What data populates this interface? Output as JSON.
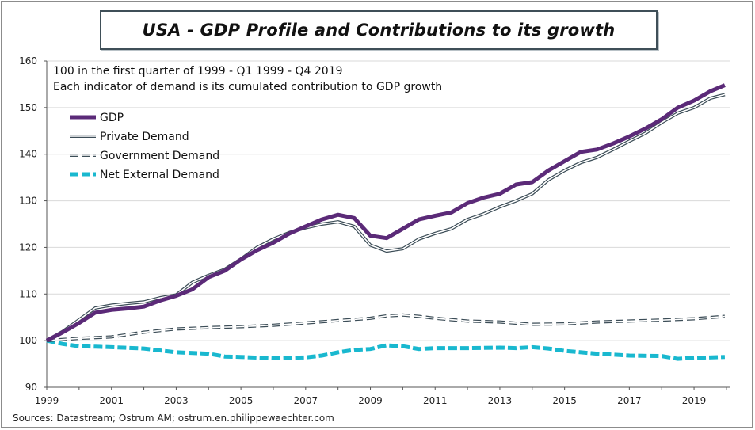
{
  "title": "USA - GDP Profile and Contributions to its growth",
  "source": "Sources: Datastream; Ostrum AM;  ostrum.en.philippewaechter.com",
  "colors": {
    "gdp": "#5b2a78",
    "private": "#3c4d57",
    "government": "#3c4d57",
    "external": "#19b8cf"
  },
  "chart_data": {
    "type": "line",
    "notes": [
      "100 in  the first quarter of 1999 - Q1 1999 - Q4 2019",
      "Each indicator of demand is its cumulated contribution  to GDP growth"
    ],
    "xlim": [
      1999,
      2020.1
    ],
    "ylim": [
      90,
      160
    ],
    "x_ticks": [
      1999,
      2001,
      2003,
      2005,
      2007,
      2009,
      2011,
      2013,
      2015,
      2017,
      2019
    ],
    "y_ticks": [
      90,
      100,
      110,
      120,
      130,
      140,
      150,
      160
    ],
    "legend_position": "top-left",
    "series": [
      {
        "name": "GDP",
        "style": "thick-solid",
        "points": [
          [
            1999,
            100
          ],
          [
            1999.5,
            101.8
          ],
          [
            2000,
            103.8
          ],
          [
            2000.5,
            106
          ],
          [
            2001,
            106.6
          ],
          [
            2001.5,
            106.9
          ],
          [
            2002,
            107.3
          ],
          [
            2002.5,
            108.6
          ],
          [
            2003,
            109.6
          ],
          [
            2003.5,
            111
          ],
          [
            2004,
            113.6
          ],
          [
            2004.5,
            115
          ],
          [
            2005,
            117.4
          ],
          [
            2005.5,
            119.4
          ],
          [
            2006,
            121
          ],
          [
            2006.5,
            123
          ],
          [
            2007,
            124.5
          ],
          [
            2007.5,
            126
          ],
          [
            2008,
            127
          ],
          [
            2008.5,
            126.3
          ],
          [
            2009,
            122.5
          ],
          [
            2009.5,
            122
          ],
          [
            2010,
            124
          ],
          [
            2010.5,
            126
          ],
          [
            2011,
            126.8
          ],
          [
            2011.5,
            127.5
          ],
          [
            2012,
            129.5
          ],
          [
            2012.5,
            130.7
          ],
          [
            2013,
            131.5
          ],
          [
            2013.5,
            133.5
          ],
          [
            2014,
            134
          ],
          [
            2014.5,
            136.5
          ],
          [
            2015,
            138.5
          ],
          [
            2015.5,
            140.5
          ],
          [
            2016,
            141
          ],
          [
            2016.5,
            142.3
          ],
          [
            2017,
            143.8
          ],
          [
            2017.5,
            145.5
          ],
          [
            2018,
            147.5
          ],
          [
            2018.5,
            150
          ],
          [
            2019,
            151.5
          ],
          [
            2019.5,
            153.5
          ],
          [
            2019.95,
            154.8
          ]
        ]
      },
      {
        "name": "Private Demand",
        "style": "double-line",
        "points": [
          [
            1999,
            100
          ],
          [
            1999.5,
            102
          ],
          [
            2000,
            104.5
          ],
          [
            2000.5,
            107
          ],
          [
            2001,
            107.6
          ],
          [
            2001.5,
            108
          ],
          [
            2002,
            108.3
          ],
          [
            2002.5,
            109.2
          ],
          [
            2003,
            109.8
          ],
          [
            2003.5,
            112.5
          ],
          [
            2004,
            114
          ],
          [
            2004.5,
            115.3
          ],
          [
            2005,
            117.5
          ],
          [
            2005.5,
            120
          ],
          [
            2006,
            121.8
          ],
          [
            2006.5,
            123.2
          ],
          [
            2007,
            124.2
          ],
          [
            2007.5,
            125
          ],
          [
            2008,
            125.5
          ],
          [
            2008.5,
            124.5
          ],
          [
            2009,
            120.5
          ],
          [
            2009.5,
            119.2
          ],
          [
            2010,
            119.7
          ],
          [
            2010.5,
            121.8
          ],
          [
            2011,
            123
          ],
          [
            2011.5,
            124
          ],
          [
            2012,
            126
          ],
          [
            2012.5,
            127.2
          ],
          [
            2013,
            128.7
          ],
          [
            2013.5,
            130
          ],
          [
            2014,
            131.5
          ],
          [
            2014.5,
            134.5
          ],
          [
            2015,
            136.5
          ],
          [
            2015.5,
            138.2
          ],
          [
            2016,
            139.3
          ],
          [
            2016.5,
            141
          ],
          [
            2017,
            142.8
          ],
          [
            2017.5,
            144.5
          ],
          [
            2018,
            146.8
          ],
          [
            2018.5,
            148.8
          ],
          [
            2019,
            150
          ],
          [
            2019.5,
            152
          ],
          [
            2019.95,
            152.8
          ]
        ]
      },
      {
        "name": "Government Demand",
        "style": "double-dashed",
        "points": [
          [
            1999,
            100
          ],
          [
            2000,
            100.5
          ],
          [
            2001,
            100.8
          ],
          [
            2002,
            101.8
          ],
          [
            2003,
            102.5
          ],
          [
            2004,
            102.8
          ],
          [
            2005,
            103
          ],
          [
            2006,
            103.3
          ],
          [
            2007,
            103.8
          ],
          [
            2008,
            104.3
          ],
          [
            2009,
            104.8
          ],
          [
            2009.5,
            105.3
          ],
          [
            2010,
            105.5
          ],
          [
            2010.5,
            105.2
          ],
          [
            2011,
            104.8
          ],
          [
            2012,
            104.2
          ],
          [
            2013,
            104
          ],
          [
            2014,
            103.5
          ],
          [
            2015,
            103.6
          ],
          [
            2016,
            104
          ],
          [
            2017,
            104.2
          ],
          [
            2018,
            104.4
          ],
          [
            2019,
            104.7
          ],
          [
            2019.95,
            105.2
          ]
        ]
      },
      {
        "name": "Net External Demand",
        "style": "thick-dashed",
        "points": [
          [
            1999,
            100
          ],
          [
            1999.5,
            99.3
          ],
          [
            2000,
            98.8
          ],
          [
            2000.5,
            98.7
          ],
          [
            2001,
            98.6
          ],
          [
            2002,
            98.3
          ],
          [
            2003,
            97.5
          ],
          [
            2004,
            97.2
          ],
          [
            2004.5,
            96.6
          ],
          [
            2005,
            96.5
          ],
          [
            2006,
            96.2
          ],
          [
            2007,
            96.4
          ],
          [
            2007.5,
            96.8
          ],
          [
            2008,
            97.5
          ],
          [
            2008.5,
            98
          ],
          [
            2009,
            98.2
          ],
          [
            2009.5,
            99
          ],
          [
            2010,
            98.8
          ],
          [
            2010.5,
            98.2
          ],
          [
            2011,
            98.4
          ],
          [
            2012,
            98.4
          ],
          [
            2013,
            98.5
          ],
          [
            2013.5,
            98.4
          ],
          [
            2014,
            98.6
          ],
          [
            2014.5,
            98.3
          ],
          [
            2015,
            97.8
          ],
          [
            2016,
            97.2
          ],
          [
            2017,
            96.8
          ],
          [
            2018,
            96.7
          ],
          [
            2018.5,
            96.1
          ],
          [
            2019,
            96.3
          ],
          [
            2019.95,
            96.5
          ]
        ]
      }
    ]
  }
}
